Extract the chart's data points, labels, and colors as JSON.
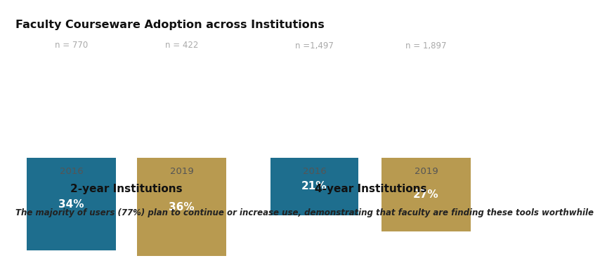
{
  "title": "Faculty Courseware Adoption across Institutions",
  "footnote": "The majority of users (77%) plan to continue or increase use, demonstrating that faculty are finding these tools worthwhile",
  "groups": [
    {
      "label": "2-year Institutions",
      "bars": [
        {
          "year": "2016",
          "pct": 34,
          "n": "n = 770",
          "color": "#1e6e8e"
        },
        {
          "year": "2019",
          "pct": 36,
          "n": "n = 422",
          "color": "#b89a50"
        }
      ]
    },
    {
      "label": "4-year Institutions",
      "bars": [
        {
          "year": "2016",
          "pct": 21,
          "n": "n =1,497",
          "color": "#1e6e8e"
        },
        {
          "year": "2019",
          "pct": 27,
          "n": "n = 1,897",
          "color": "#b89a50"
        }
      ]
    }
  ],
  "max_pct": 40,
  "bg_color": "#ffffff",
  "title_color": "#111111",
  "title_fontsize": 11.5,
  "pct_fontsize": 11,
  "n_fontsize": 8.5,
  "year_fontsize": 9.5,
  "footnote_fontsize": 8.5,
  "group_label_fontsize": 11,
  "n_color": "#aaaaaa",
  "year_color": "#555555",
  "group_label_color": "#111111",
  "footnote_color": "#222222"
}
